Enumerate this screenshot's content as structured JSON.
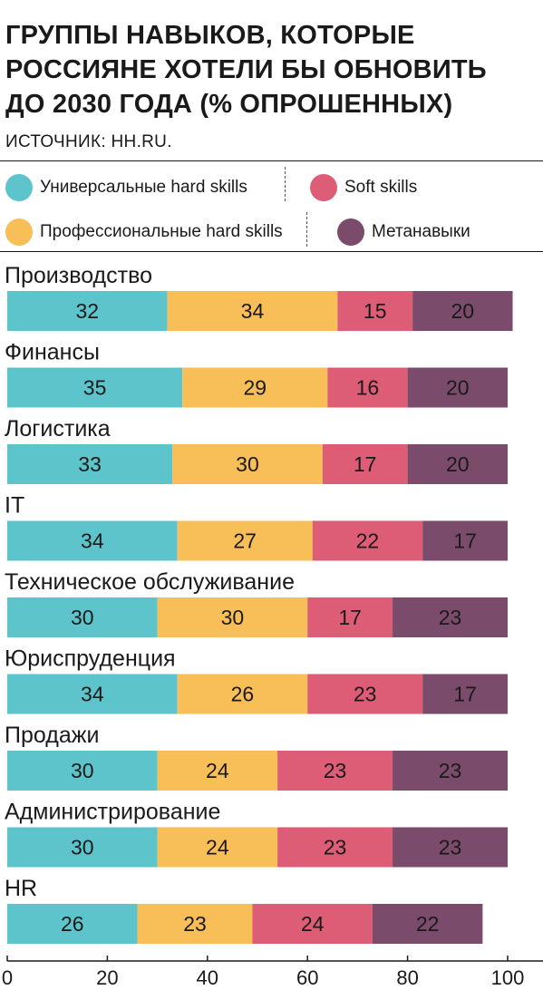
{
  "title_lines": [
    "ГРУППЫ НАВЫКОВ, КОТОРЫЕ",
    "РОССИЯНЕ ХОТЕЛИ БЫ ОБНОВИТЬ",
    "ДО 2030 ГОДА (% ОПРОШЕННЫХ)"
  ],
  "source": "ИСТОЧНИК: HH.RU.",
  "legend": [
    {
      "label": "Универсальные hard skills",
      "color": "#5ec4cb"
    },
    {
      "label": "Soft skills",
      "color": "#dc5d75"
    },
    {
      "label": "Профессиональные hard skills",
      "color": "#f8be58"
    },
    {
      "label": "Метанавыки",
      "color": "#7b4b6b"
    }
  ],
  "chart_data": {
    "type": "bar",
    "orientation": "horizontal",
    "stacked": true,
    "categories": [
      "Производство",
      "Финансы",
      "Логистика",
      "IT",
      "Техническое обслуживание",
      "Юриспруденция",
      "Продажи",
      "Администрирование",
      "HR"
    ],
    "series": [
      {
        "name": "Универсальные hard skills",
        "color": "#5ec4cb",
        "values": [
          32,
          35,
          33,
          34,
          30,
          34,
          30,
          30,
          26
        ]
      },
      {
        "name": "Профессиональные hard skills",
        "color": "#f8be58",
        "values": [
          34,
          29,
          30,
          27,
          30,
          26,
          24,
          24,
          23
        ]
      },
      {
        "name": "Soft skills",
        "color": "#dc5d75",
        "values": [
          15,
          16,
          17,
          22,
          17,
          23,
          23,
          23,
          24
        ]
      },
      {
        "name": "Метанавыки",
        "color": "#7b4b6b",
        "values": [
          20,
          20,
          20,
          17,
          23,
          17,
          23,
          23,
          22
        ]
      }
    ],
    "xlim": [
      0,
      100
    ],
    "xticks": [
      0,
      20,
      40,
      60,
      80,
      100
    ],
    "xlabel": "",
    "ylabel": "",
    "grid": false,
    "legend_position": "top"
  }
}
